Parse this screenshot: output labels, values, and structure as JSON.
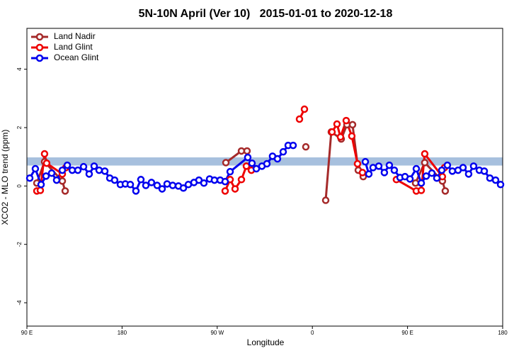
{
  "chart_data": {
    "type": "line",
    "title": "5N-10N April (Ver 10)   2015-01-01 to 2020-12-18",
    "x_label": "Longitude",
    "y_label": "XCO2 - MLO trend (ppm)",
    "xlim": [
      90,
      540
    ],
    "ylim": [
      -4.8,
      5.4
    ],
    "xticks": [
      {
        "value": 90,
        "label": "90 E"
      },
      {
        "value": 180,
        "label": "180"
      },
      {
        "value": 270,
        "label": "90 W"
      },
      {
        "value": 360,
        "label": "0"
      },
      {
        "value": 450,
        "label": "90 E"
      },
      {
        "value": 540,
        "label": "180"
      }
    ],
    "yticks": [
      -4,
      -2,
      0,
      2,
      4
    ],
    "reference_band": {
      "color": "#a7c0de",
      "range": [
        0.7,
        0.98
      ]
    },
    "legend": "top-left",
    "series": [
      {
        "name": "Land Nadir",
        "color": "#a52a2a",
        "x": [
          99.4,
          106.7,
          123.5,
          126.2,
          null,
          278.2,
          292.9,
          298.2,
          null,
          353.8,
          null,
          372.6,
          377.9,
          387.3,
          392.7,
          398,
          403.4,
          408.1,
          null,
          457.6,
          466.3,
          483,
          485.7
        ],
        "values": [
          0.1,
          0.83,
          0.17,
          -0.17,
          null,
          0.8,
          1.2,
          1.2,
          null,
          1.34,
          null,
          -0.49,
          1.85,
          1.61,
          2.1,
          2.1,
          0.54,
          0.32,
          null,
          0.1,
          0.8,
          0.17,
          -0.17
        ]
      },
      {
        "name": "Land Glint",
        "color": "#ee0000",
        "x": [
          99.4,
          102.7,
          106.7,
          108.7,
          123.5,
          126.8,
          null,
          277.5,
          282.2,
          286.9,
          292.9,
          297.6,
          302.3,
          null,
          347.8,
          352.5,
          null,
          378.6,
          383.3,
          386.6,
          392,
          397.3,
          402.7,
          407.4,
          null,
          439.5,
          458.3,
          463,
          466.3,
          483,
          485
        ],
        "values": [
          -0.17,
          -0.15,
          1.1,
          0.78,
          0.41,
          0.63,
          null,
          -0.17,
          0.22,
          -0.1,
          0.22,
          0.68,
          0.54,
          null,
          2.29,
          2.63,
          null,
          1.85,
          2.12,
          1.68,
          2.24,
          1.71,
          0.76,
          0.46,
          null,
          0.22,
          -0.17,
          -0.15,
          1.1,
          0.32,
          0.63
        ]
      },
      {
        "name": "Ocean Glint",
        "color": "#0000ee",
        "x": [
          92.7,
          98,
          103.4,
          108.1,
          113.4,
          118.1,
          123.5,
          128.2,
          132.9,
          138.2,
          143.6,
          148.9,
          153.6,
          158.3,
          163.7,
          168.4,
          173,
          178.4,
          183.1,
          187.8,
          193.1,
          197.8,
          202.5,
          207.8,
          213.2,
          217.9,
          222.6,
          227.9,
          233.3,
          238,
          242.7,
          248,
          252.7,
          257.4,
          262.8,
          267.4,
          272.8,
          277.5,
          282.2,
          298.9,
          302.9,
          307,
          312.3,
          317,
          322.3,
          327,
          332.4,
          337.1,
          341.8,
          null,
          410.1,
          413.4,
          417.4,
          422.8,
          428.1,
          432.8,
          437.5,
          442.9,
          447.6,
          452.3,
          458.3,
          463,
          467.7,
          473,
          477.7,
          482.4,
          487.7,
          492.4,
          497.8,
          502.5,
          507.8,
          512.5,
          517.9,
          522.6,
          527.9,
          533.3,
          538
        ],
        "values": [
          0.27,
          0.59,
          0.05,
          0.34,
          0.44,
          0.2,
          0.54,
          0.71,
          0.54,
          0.54,
          0.66,
          0.41,
          0.68,
          0.54,
          0.51,
          0.27,
          0.2,
          0.05,
          0.07,
          0.05,
          -0.17,
          0.22,
          0.02,
          0.12,
          0.02,
          -0.1,
          0.07,
          0.02,
          0,
          -0.07,
          0.05,
          0.12,
          0.2,
          0.1,
          0.24,
          0.2,
          0.2,
          0.15,
          0.49,
          0.98,
          0.78,
          0.59,
          0.68,
          0.76,
          1.02,
          0.93,
          1.17,
          1.39,
          1.39,
          null,
          0.83,
          0.41,
          0.63,
          0.68,
          0.46,
          0.71,
          0.54,
          0.29,
          0.32,
          0.24,
          0.59,
          0.1,
          0.34,
          0.44,
          0.27,
          0.54,
          0.71,
          0.51,
          0.54,
          0.63,
          0.41,
          0.68,
          0.54,
          0.51,
          0.27,
          0.2,
          0.05
        ]
      }
    ]
  }
}
